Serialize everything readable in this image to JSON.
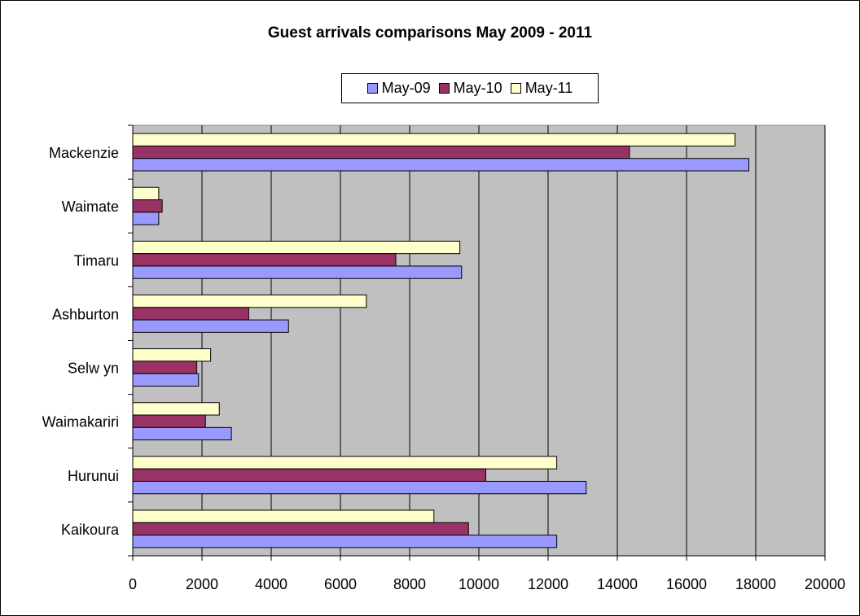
{
  "chart_data": {
    "type": "bar",
    "orientation": "horizontal",
    "title": "Guest arrivals comparisons May 2009 - 2011",
    "xlabel": "",
    "ylabel": "",
    "xlim": [
      0,
      20000
    ],
    "x_ticks": [
      "0",
      "2000",
      "4000",
      "6000",
      "8000",
      "10000",
      "12000",
      "14000",
      "16000",
      "18000",
      "20000"
    ],
    "categories": [
      "Kaikoura",
      "Hurunui",
      "Waimakariri",
      "Selw yn",
      "Ashburton",
      "Timaru",
      "Waimate",
      "Mackenzie"
    ],
    "series": [
      {
        "name": "May-09",
        "color": "#9999ff",
        "values": [
          12250,
          13100,
          2850,
          1900,
          4500,
          9500,
          750,
          17800
        ]
      },
      {
        "name": "May-10",
        "color": "#993366",
        "values": [
          9700,
          10200,
          2100,
          1850,
          3350,
          7600,
          850,
          14350
        ]
      },
      {
        "name": "May-11",
        "color": "#ffffcc",
        "values": [
          8700,
          12250,
          2500,
          2250,
          6750,
          9450,
          750,
          17400
        ]
      }
    ],
    "grid": true,
    "plot_background": "#c0c0c0",
    "legend_position": "top-center"
  }
}
